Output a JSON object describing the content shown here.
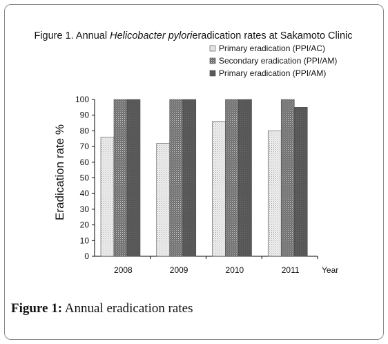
{
  "figure": {
    "title_prefix": "Figure 1. Annual",
    "title_italic": "Helicobacter pylori",
    "title_suffix": "eradication rates at Sakamoto Clinic",
    "caption_label": "Figure 1:",
    "caption_text": "Annual eradication rates"
  },
  "chart_data": {
    "type": "bar",
    "categories": [
      "2008",
      "2009",
      "2010",
      "2011"
    ],
    "series": [
      {
        "name": "Primary eradication (PPI/AC)",
        "values": [
          76,
          72,
          86,
          80
        ],
        "color": "#e8e8e8",
        "pattern": "fine-dots-light"
      },
      {
        "name": "Secondary eradication (PPI/AM)",
        "values": [
          100,
          100,
          100,
          100
        ],
        "color": "#7a7a7a",
        "pattern": "fine-dots-dark"
      },
      {
        "name": "Primary eradication (PPI/AM)",
        "values": [
          100,
          100,
          100,
          95
        ],
        "color": "#5a5a5a",
        "pattern": "solid-dark"
      }
    ],
    "xlabel": "Year",
    "ylabel": "Eradication rate %",
    "ylim": [
      0,
      100
    ],
    "yticks": [
      0,
      10,
      20,
      30,
      40,
      50,
      60,
      70,
      80,
      90,
      100
    ],
    "grid": false,
    "legend_position": "top-right"
  }
}
